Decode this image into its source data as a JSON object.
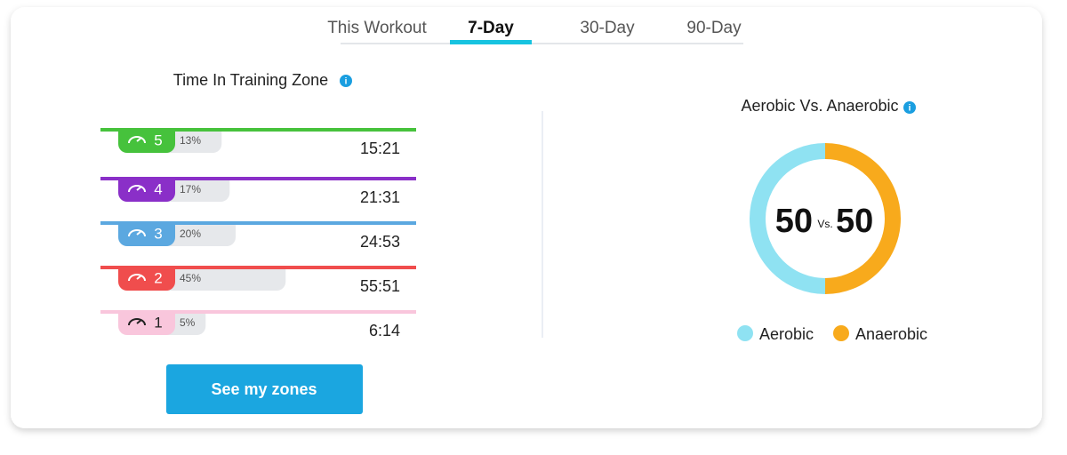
{
  "tabs": [
    "This Workout",
    "7-Day",
    "30-Day",
    "90-Day"
  ],
  "selected_tab": 1,
  "training_zones": {
    "title": "Time In Training Zone",
    "zones": [
      {
        "zone": 5,
        "color": "#46c23c",
        "text_color": "#ffffff",
        "percent": {
          "value": 13,
          "label": "13%"
        },
        "time": "15:21"
      },
      {
        "zone": 4,
        "color": "#8a2fc8",
        "text_color": "#ffffff",
        "percent": {
          "value": 17,
          "label": "17%"
        },
        "time": "21:31"
      },
      {
        "zone": 3,
        "color": "#5ba8e0",
        "text_color": "#ffffff",
        "percent": {
          "value": 20,
          "label": "20%"
        },
        "time": "24:53"
      },
      {
        "zone": 2,
        "color": "#f04d4d",
        "text_color": "#ffffff",
        "percent": {
          "value": 45,
          "label": "45%"
        },
        "time": "55:51"
      },
      {
        "zone": 1,
        "color": "#f9c6dc",
        "text_color": "#222222",
        "percent": {
          "value": 5,
          "label": "5%"
        },
        "time": "6:14"
      }
    ],
    "button": "See my zones"
  },
  "aerobic_vs_anaerobic": {
    "title": "Aerobic Vs. Anaerobic",
    "separator": "Vs.",
    "parts": [
      {
        "name": "Aerobic",
        "value": 50,
        "color": "#8fe2f2"
      },
      {
        "name": "Anaerobic",
        "value": 50,
        "color": "#f8aa1c"
      }
    ]
  }
}
